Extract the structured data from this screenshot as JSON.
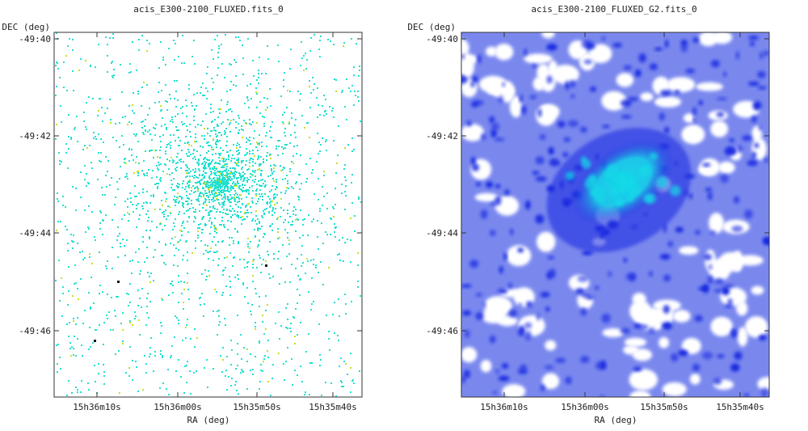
{
  "chart_data": [
    {
      "type": "image",
      "title": "acis_E300-2100_FLUXED.fits_0",
      "xlabel": "RA (deg)",
      "ylabel": "DEC (deg)",
      "x_ticks": [
        "15h36m10s",
        "15h36m00s",
        "15h35m50s",
        "15h35m40s"
      ],
      "y_ticks": [
        "-49:40",
        "-49:42",
        "-49:44",
        "-49:46"
      ],
      "grid": false,
      "style": "sparse-pixels",
      "colors": {
        "background": "#ffffff",
        "pixel": "#22e0d0",
        "pixel_alt": "#c8e020",
        "hot": "#111111"
      }
    },
    {
      "type": "image",
      "title": "acis_E300-2100_FLUXED_G2.fits_0",
      "xlabel": "RA (deg)",
      "ylabel": "DEC (deg)",
      "x_ticks": [
        "15h36m10s",
        "15h36m00s",
        "15h35m50s",
        "15h35m40s"
      ],
      "y_ticks": [
        "-49:40",
        "-49:42",
        "-49:44",
        "-49:46"
      ],
      "grid": false,
      "style": "smoothed",
      "colors": {
        "background": "#ffffff",
        "low": "#7a88ee",
        "mid": "#1828e0",
        "high": "#18d8e8",
        "source": "#000000",
        "source_ring": "#e8e020"
      }
    }
  ]
}
